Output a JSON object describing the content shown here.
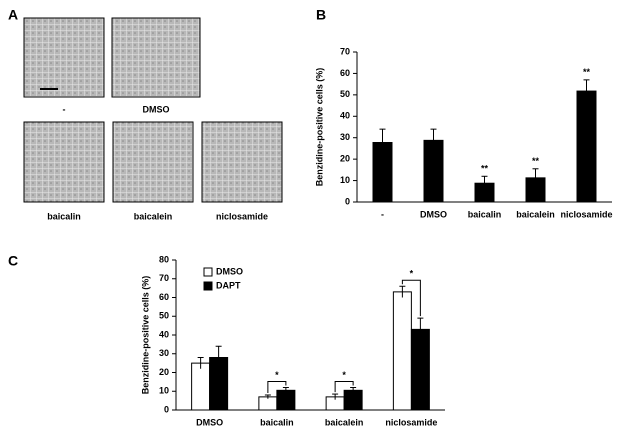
{
  "panel_a": {
    "label": "A",
    "images": [
      {
        "caption": "-"
      },
      {
        "caption": "DMSO"
      },
      {
        "caption": "baicalin"
      },
      {
        "caption": "baicalein"
      },
      {
        "caption": "niclosamide"
      }
    ]
  },
  "chart_data": [
    {
      "type": "bar",
      "panel": "B",
      "y_label": "Benzidine-positive cells (%)",
      "categories": [
        "-",
        "DMSO",
        "baicalin",
        "baicalein",
        "niclosamide"
      ],
      "values": [
        28,
        29,
        9,
        11.5,
        52
      ],
      "errors": [
        6,
        5,
        3,
        4,
        5
      ],
      "annotations": [
        null,
        null,
        "**",
        "**",
        "**"
      ],
      "color": "#000000",
      "ylim": [
        0,
        70
      ],
      "yticks": [
        0,
        10,
        20,
        30,
        40,
        50,
        60,
        70
      ]
    },
    {
      "type": "bar",
      "panel": "C",
      "y_label": "Benzidine-positive cells (%)",
      "categories": [
        "DMSO",
        "baicalin",
        "baicalein",
        "niclosamide"
      ],
      "series": [
        {
          "name": "DMSO",
          "color": "#ffffff",
          "values": [
            25,
            7,
            7,
            63
          ],
          "errors": [
            3,
            1,
            1.5,
            3
          ]
        },
        {
          "name": "DAPT",
          "color": "#000000",
          "values": [
            28,
            10.5,
            10.5,
            43
          ],
          "errors": [
            6,
            1.5,
            1.5,
            6
          ]
        }
      ],
      "annotations": [
        null,
        "*",
        "*",
        "*"
      ],
      "ylim": [
        0,
        80
      ],
      "yticks": [
        0,
        10,
        20,
        30,
        40,
        50,
        60,
        70,
        80
      ],
      "legend": "upper-left"
    }
  ]
}
